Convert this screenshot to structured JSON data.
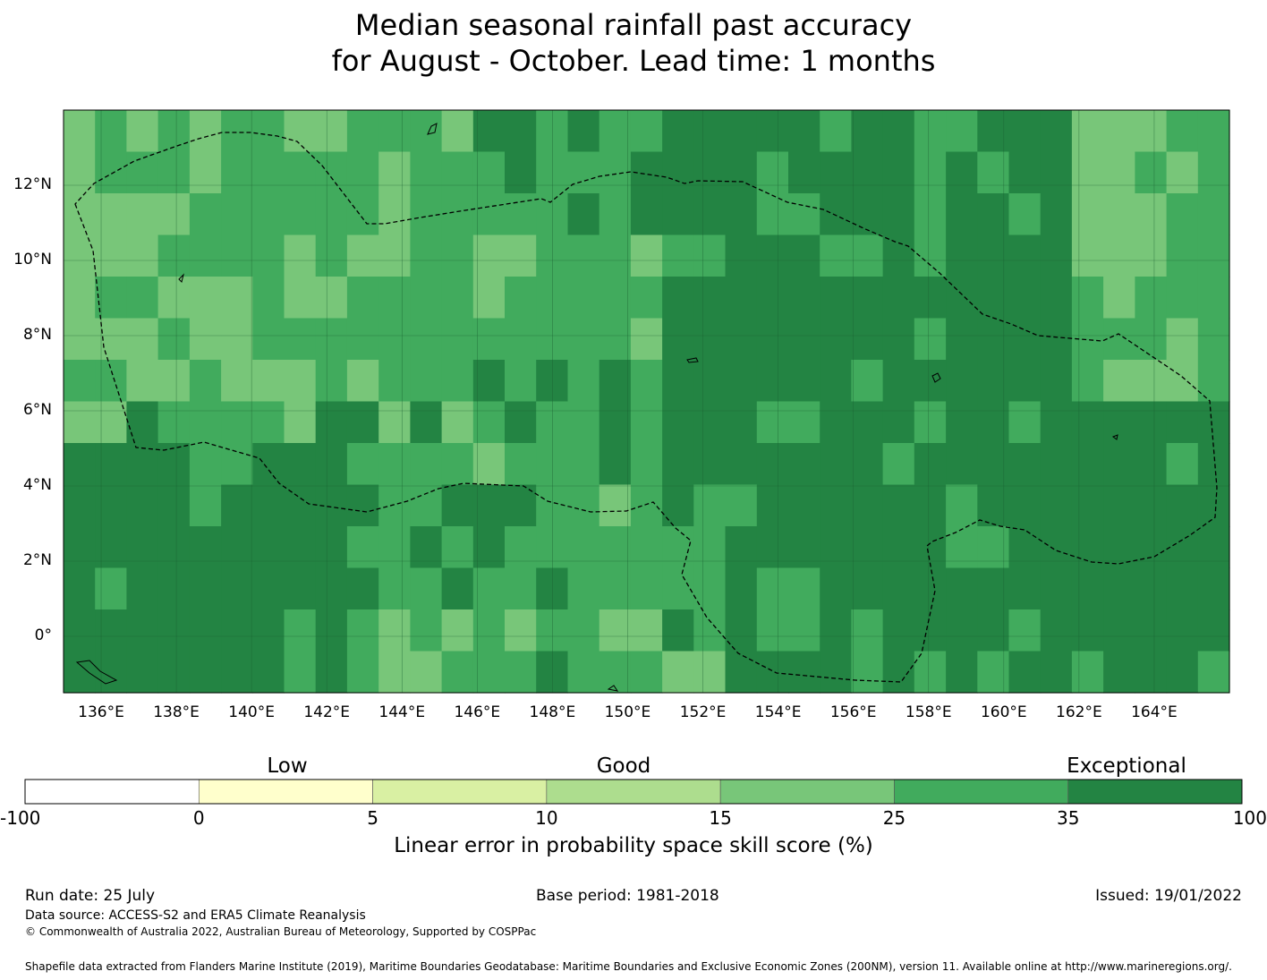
{
  "title_line1": "Median seasonal rainfall past accuracy",
  "title_line2": "for August - October. Lead time: 1 months",
  "map": {
    "lon_ticks": [
      "136°E",
      "138°E",
      "140°E",
      "142°E",
      "144°E",
      "146°E",
      "148°E",
      "150°E",
      "152°E",
      "154°E",
      "156°E",
      "158°E",
      "160°E",
      "162°E",
      "164°E"
    ],
    "lat_ticks": [
      "12°N",
      "10°N",
      "8°N",
      "6°N",
      "4°N",
      "2°N",
      "0°"
    ],
    "lon_values": [
      136,
      138,
      140,
      142,
      144,
      146,
      148,
      150,
      152,
      154,
      156,
      158,
      160,
      162,
      164
    ],
    "lat_values": [
      12,
      10,
      8,
      6,
      4,
      2,
      0
    ],
    "extent": {
      "lon_min": 135,
      "lon_max": 166,
      "lat_min": -1.5,
      "lat_max": 14
    },
    "grid_on": true
  },
  "colorbar": {
    "categories": [
      "Low",
      "Good",
      "Exceptional"
    ],
    "ticks": [
      "-100",
      "0",
      "5",
      "10",
      "15",
      "25",
      "35",
      "100"
    ],
    "colors": [
      "#ffffff",
      "#ffffcc",
      "#d9f0a3",
      "#addd8e",
      "#78c679",
      "#41ab5d",
      "#238443"
    ],
    "label": "Linear error in probability space skill score (%)"
  },
  "footer": {
    "run_date": "Run date: 25 July",
    "base_period": "Base period: 1981-2018",
    "issued": "Issued: 19/01/2022",
    "data_source": "Data source: ACCESS-S2 and ERA5 Climate Reanalysis",
    "copyright": "© Commonwealth of Australia 2022, Australian Bureau of Meteorology, Supported by COSPPac",
    "shapefile": "Shapefile data extracted from Flanders Marine Institute (2019), Maritime Boundaries Geodatabase: Maritime Boundaries and Exclusive Economic Zones (200NM), version 11. Available online at http://www.marineregions.org/."
  }
}
